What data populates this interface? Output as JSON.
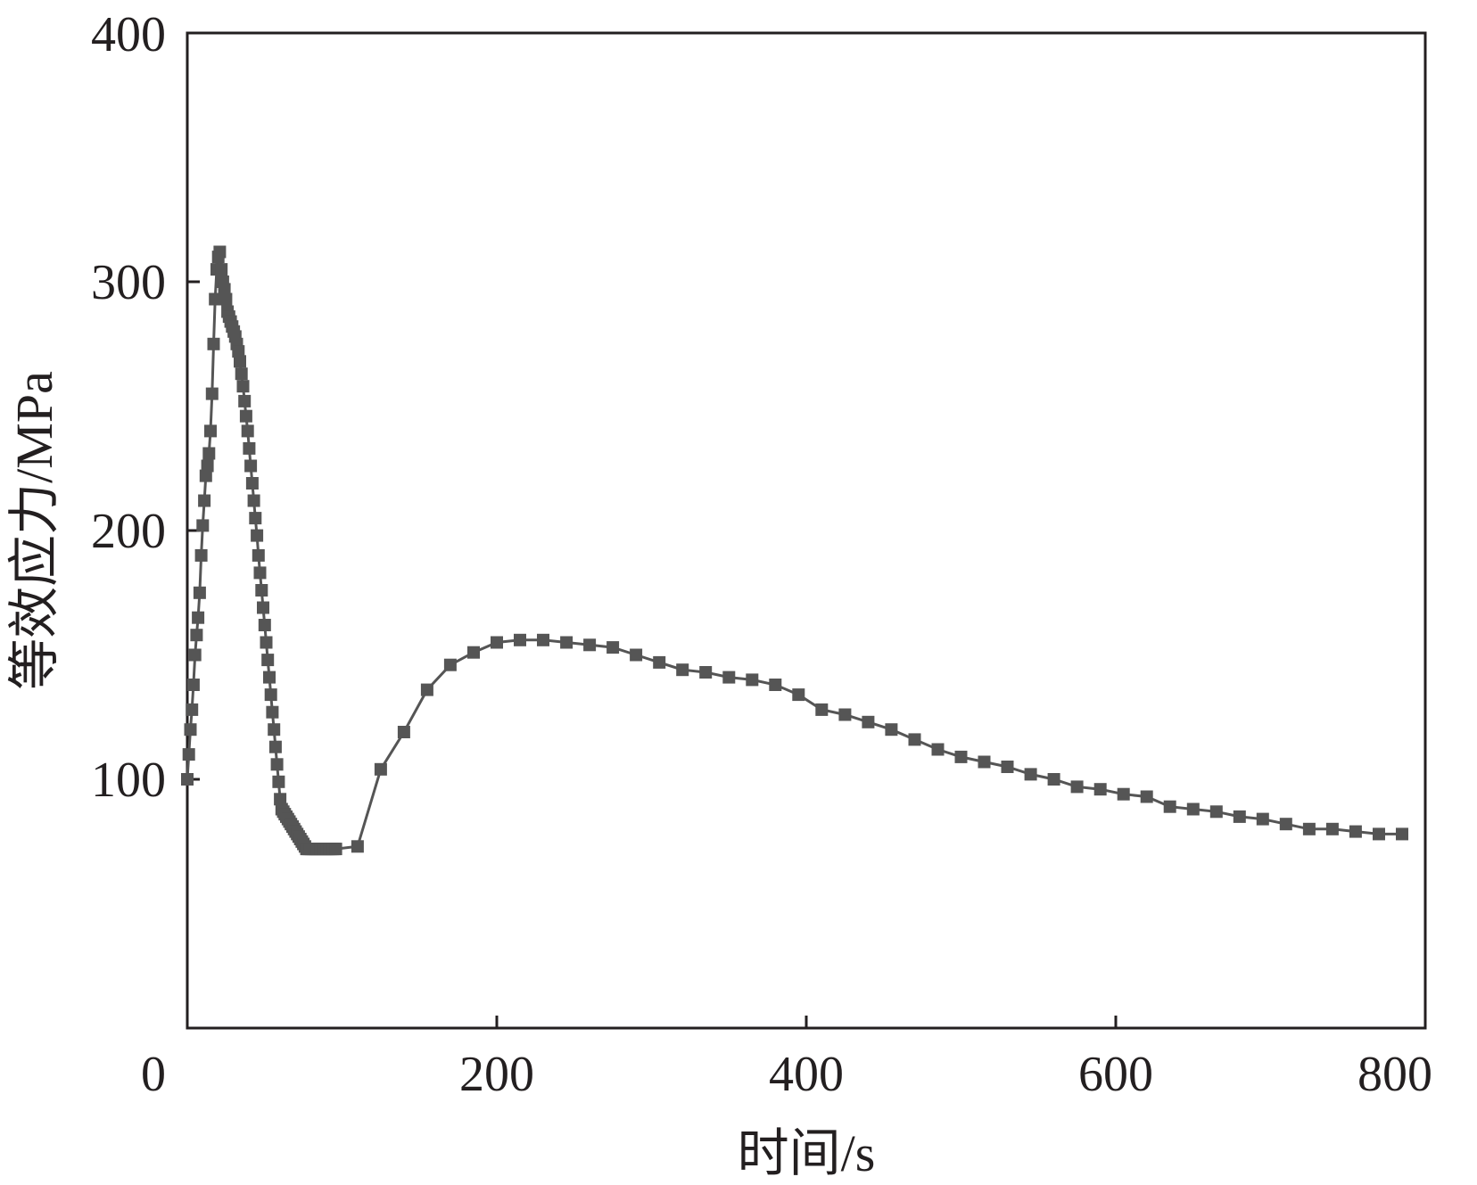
{
  "chart_data": {
    "type": "line",
    "title": "",
    "xlabel": "时间/s",
    "ylabel": "等效应力/MPa",
    "xlim": [
      0,
      800
    ],
    "ylim": [
      0,
      400
    ],
    "x_ticks": [
      0,
      200,
      400,
      600,
      800
    ],
    "x_tick_labels": [
      "0",
      "200",
      "400",
      "600",
      "800"
    ],
    "y_ticks": [
      100,
      200,
      300,
      400
    ],
    "y_tick_labels": [
      "100",
      "200",
      "300",
      "400"
    ],
    "grid": false,
    "legend": "none",
    "colors": {
      "series": "#555555",
      "axis": "#231f20"
    },
    "marker": "square",
    "series": [
      {
        "x": [
          0,
          1,
          2,
          3,
          4,
          5,
          6,
          7,
          8,
          9,
          10,
          11,
          12,
          13,
          14,
          15,
          16,
          17,
          18,
          19,
          20,
          21,
          22,
          23,
          24,
          25,
          26,
          27,
          28,
          29,
          30,
          31,
          32,
          33,
          34,
          35,
          36,
          37,
          38,
          39,
          40,
          41,
          42,
          43,
          44,
          45,
          46,
          47,
          48,
          49,
          50,
          51,
          52,
          53,
          54,
          55,
          56,
          57,
          58,
          59,
          60,
          61,
          62,
          63,
          64,
          65,
          66,
          67,
          68,
          69,
          70,
          71,
          72,
          73,
          74,
          75,
          76,
          77,
          78,
          79,
          80,
          81,
          82,
          83,
          84,
          85,
          86,
          87,
          88,
          89,
          90,
          91,
          92,
          93,
          94,
          95,
          96,
          110,
          125,
          140,
          155,
          170,
          185,
          200,
          215,
          230,
          245,
          260,
          275,
          290,
          305,
          320,
          335,
          350,
          365,
          380,
          395,
          410,
          425,
          440,
          455,
          470,
          485,
          500,
          515,
          530,
          545,
          560,
          575,
          590,
          605,
          620,
          635,
          650,
          665,
          680,
          695,
          710,
          725,
          740,
          755,
          770,
          785
        ],
        "y": [
          100,
          110,
          120,
          128,
          138,
          150,
          158,
          165,
          175,
          190,
          202,
          212,
          222,
          226,
          231,
          240,
          255,
          275,
          293,
          305,
          310,
          312,
          305,
          300,
          297,
          293,
          288,
          286,
          284,
          282,
          280,
          278,
          275,
          272,
          268,
          263,
          258,
          252,
          246,
          240,
          233,
          226,
          219,
          212,
          205,
          198,
          190,
          183,
          176,
          169,
          162,
          155,
          148,
          141,
          134,
          127,
          120,
          113,
          106,
          99,
          92,
          88,
          87,
          86,
          85,
          84,
          83,
          82,
          81,
          80,
          79,
          78,
          77,
          76,
          75,
          74,
          73,
          72,
          72,
          72,
          72,
          72,
          72,
          72,
          72,
          72,
          72,
          72,
          72,
          72,
          72,
          72,
          72,
          72,
          72,
          72,
          72,
          73,
          104,
          119,
          136,
          146,
          151,
          155,
          156,
          156,
          155,
          154,
          153,
          150,
          147,
          144,
          143,
          141,
          140,
          138,
          134,
          128,
          126,
          123,
          120,
          116,
          112,
          109,
          107,
          105,
          102,
          100,
          97,
          96,
          94,
          93,
          89,
          88,
          87,
          85,
          84,
          82,
          80,
          80,
          79,
          78,
          78
        ]
      }
    ]
  }
}
